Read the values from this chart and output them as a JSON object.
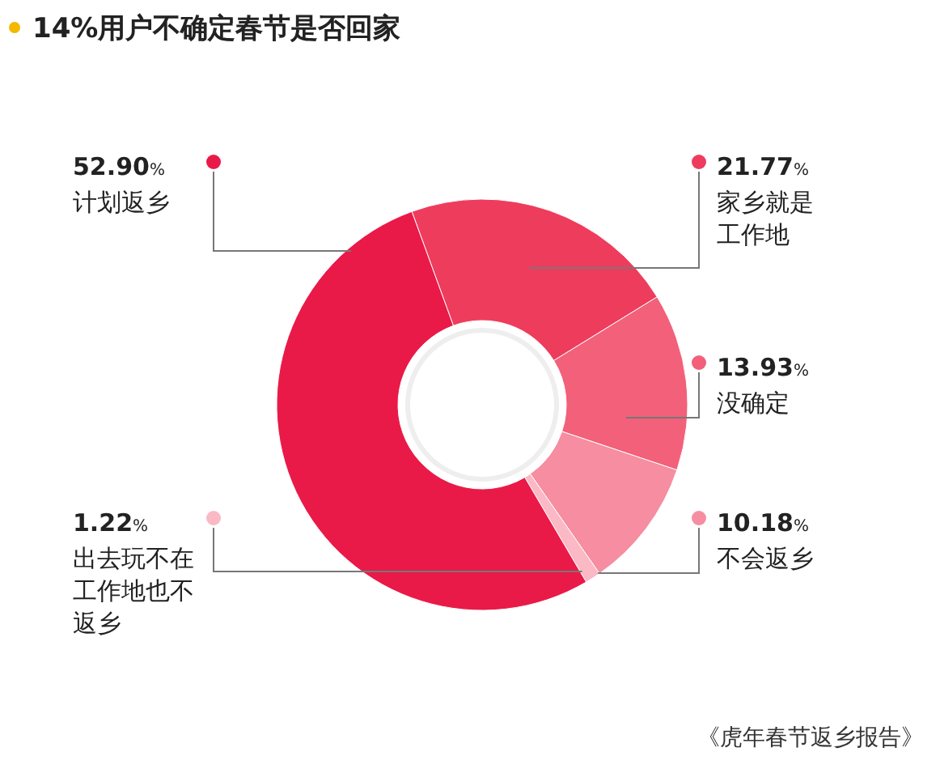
{
  "chart_data": {
    "type": "donut",
    "title": "14%用户不确定春节是否回家",
    "categories": [
      "家乡就是工作地",
      "没确定",
      "不会返乡",
      "出去玩不在工作地也不返乡",
      "计划返乡"
    ],
    "values": [
      21.77,
      13.93,
      10.18,
      1.22,
      52.9
    ],
    "colors": [
      "#ee3c5d",
      "#f2607a",
      "#f68da0",
      "#fab9c5",
      "#e91a48"
    ],
    "value_labels": [
      "21.77%",
      "13.93%",
      "10.18%",
      "1.22%",
      "52.90%"
    ],
    "legend": "top left",
    "annotations": [
      "《虎年春节返乡报告》"
    ]
  }
}
